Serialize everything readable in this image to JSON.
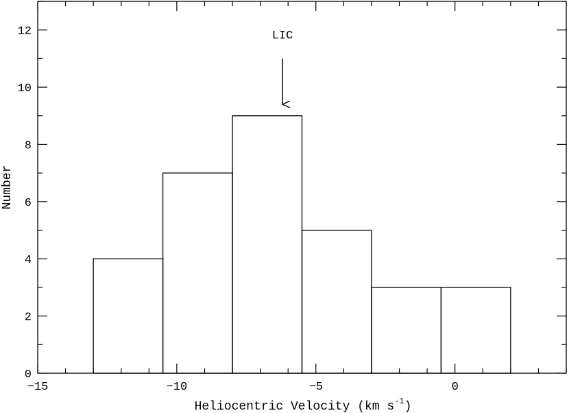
{
  "chart_data": {
    "type": "bar",
    "subtype": "histogram",
    "xlabel": "Heliocentric Velocity (km s",
    "xlabel_superscript": "-1",
    "xlabel_suffix": ")",
    "ylabel": "Number",
    "xlim": [
      -15,
      4
    ],
    "ylim": [
      0,
      13
    ],
    "x_major_ticks": [
      -15,
      -10,
      -5,
      0
    ],
    "x_tick_labels": [
      "−15",
      "−10",
      "−5",
      "0"
    ],
    "x_minor_step": 1,
    "y_major_ticks": [
      0,
      2,
      4,
      6,
      8,
      10,
      12
    ],
    "y_tick_labels": [
      "0",
      "2",
      "4",
      "6",
      "8",
      "10",
      "12"
    ],
    "y_minor_step": 1,
    "bins": [
      {
        "x0": -13.0,
        "x1": -10.5,
        "count": 4
      },
      {
        "x0": -10.5,
        "x1": -8.0,
        "count": 7
      },
      {
        "x0": -8.0,
        "x1": -5.5,
        "count": 9
      },
      {
        "x0": -5.5,
        "x1": -3.0,
        "count": 5
      },
      {
        "x0": -3.0,
        "x1": -0.5,
        "count": 3
      },
      {
        "x0": -0.5,
        "x1": 2.0,
        "count": 3
      }
    ],
    "grid": false,
    "annotations": [
      {
        "text": "LIC",
        "x": -6.2,
        "arrow_from_y": 11.0,
        "arrow_to_y": 9.4,
        "label_y": 11.7
      }
    ]
  }
}
